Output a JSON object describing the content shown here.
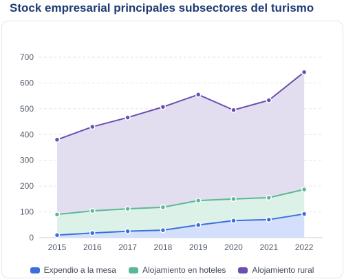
{
  "title": "Stock empresarial principales subsectores del turismo",
  "chart_data": {
    "type": "area",
    "stacked": false,
    "categories": [
      "2015",
      "2016",
      "2017",
      "2018",
      "2019",
      "2020",
      "2021",
      "2022"
    ],
    "series": [
      {
        "name": "Expendio a la mesa",
        "values": [
          10,
          18,
          25,
          29,
          49,
          66,
          70,
          92
        ],
        "color": "#3b6fe0",
        "fill": "#d4dffc"
      },
      {
        "name": "Alojamiento en hoteles",
        "values": [
          90,
          104,
          112,
          118,
          144,
          150,
          155,
          187
        ],
        "color": "#5bb894",
        "fill": "#dcf2e8"
      },
      {
        "name": "Alojamiento rural",
        "values": [
          380,
          430,
          466,
          507,
          555,
          495,
          533,
          642
        ],
        "color": "#6a4fb0",
        "fill": "#e3ddf0"
      }
    ],
    "yticks": [
      0,
      100,
      200,
      300,
      400,
      500,
      600,
      700
    ],
    "ylim": [
      0,
      700
    ],
    "grid": true,
    "legend_position": "bottom"
  }
}
